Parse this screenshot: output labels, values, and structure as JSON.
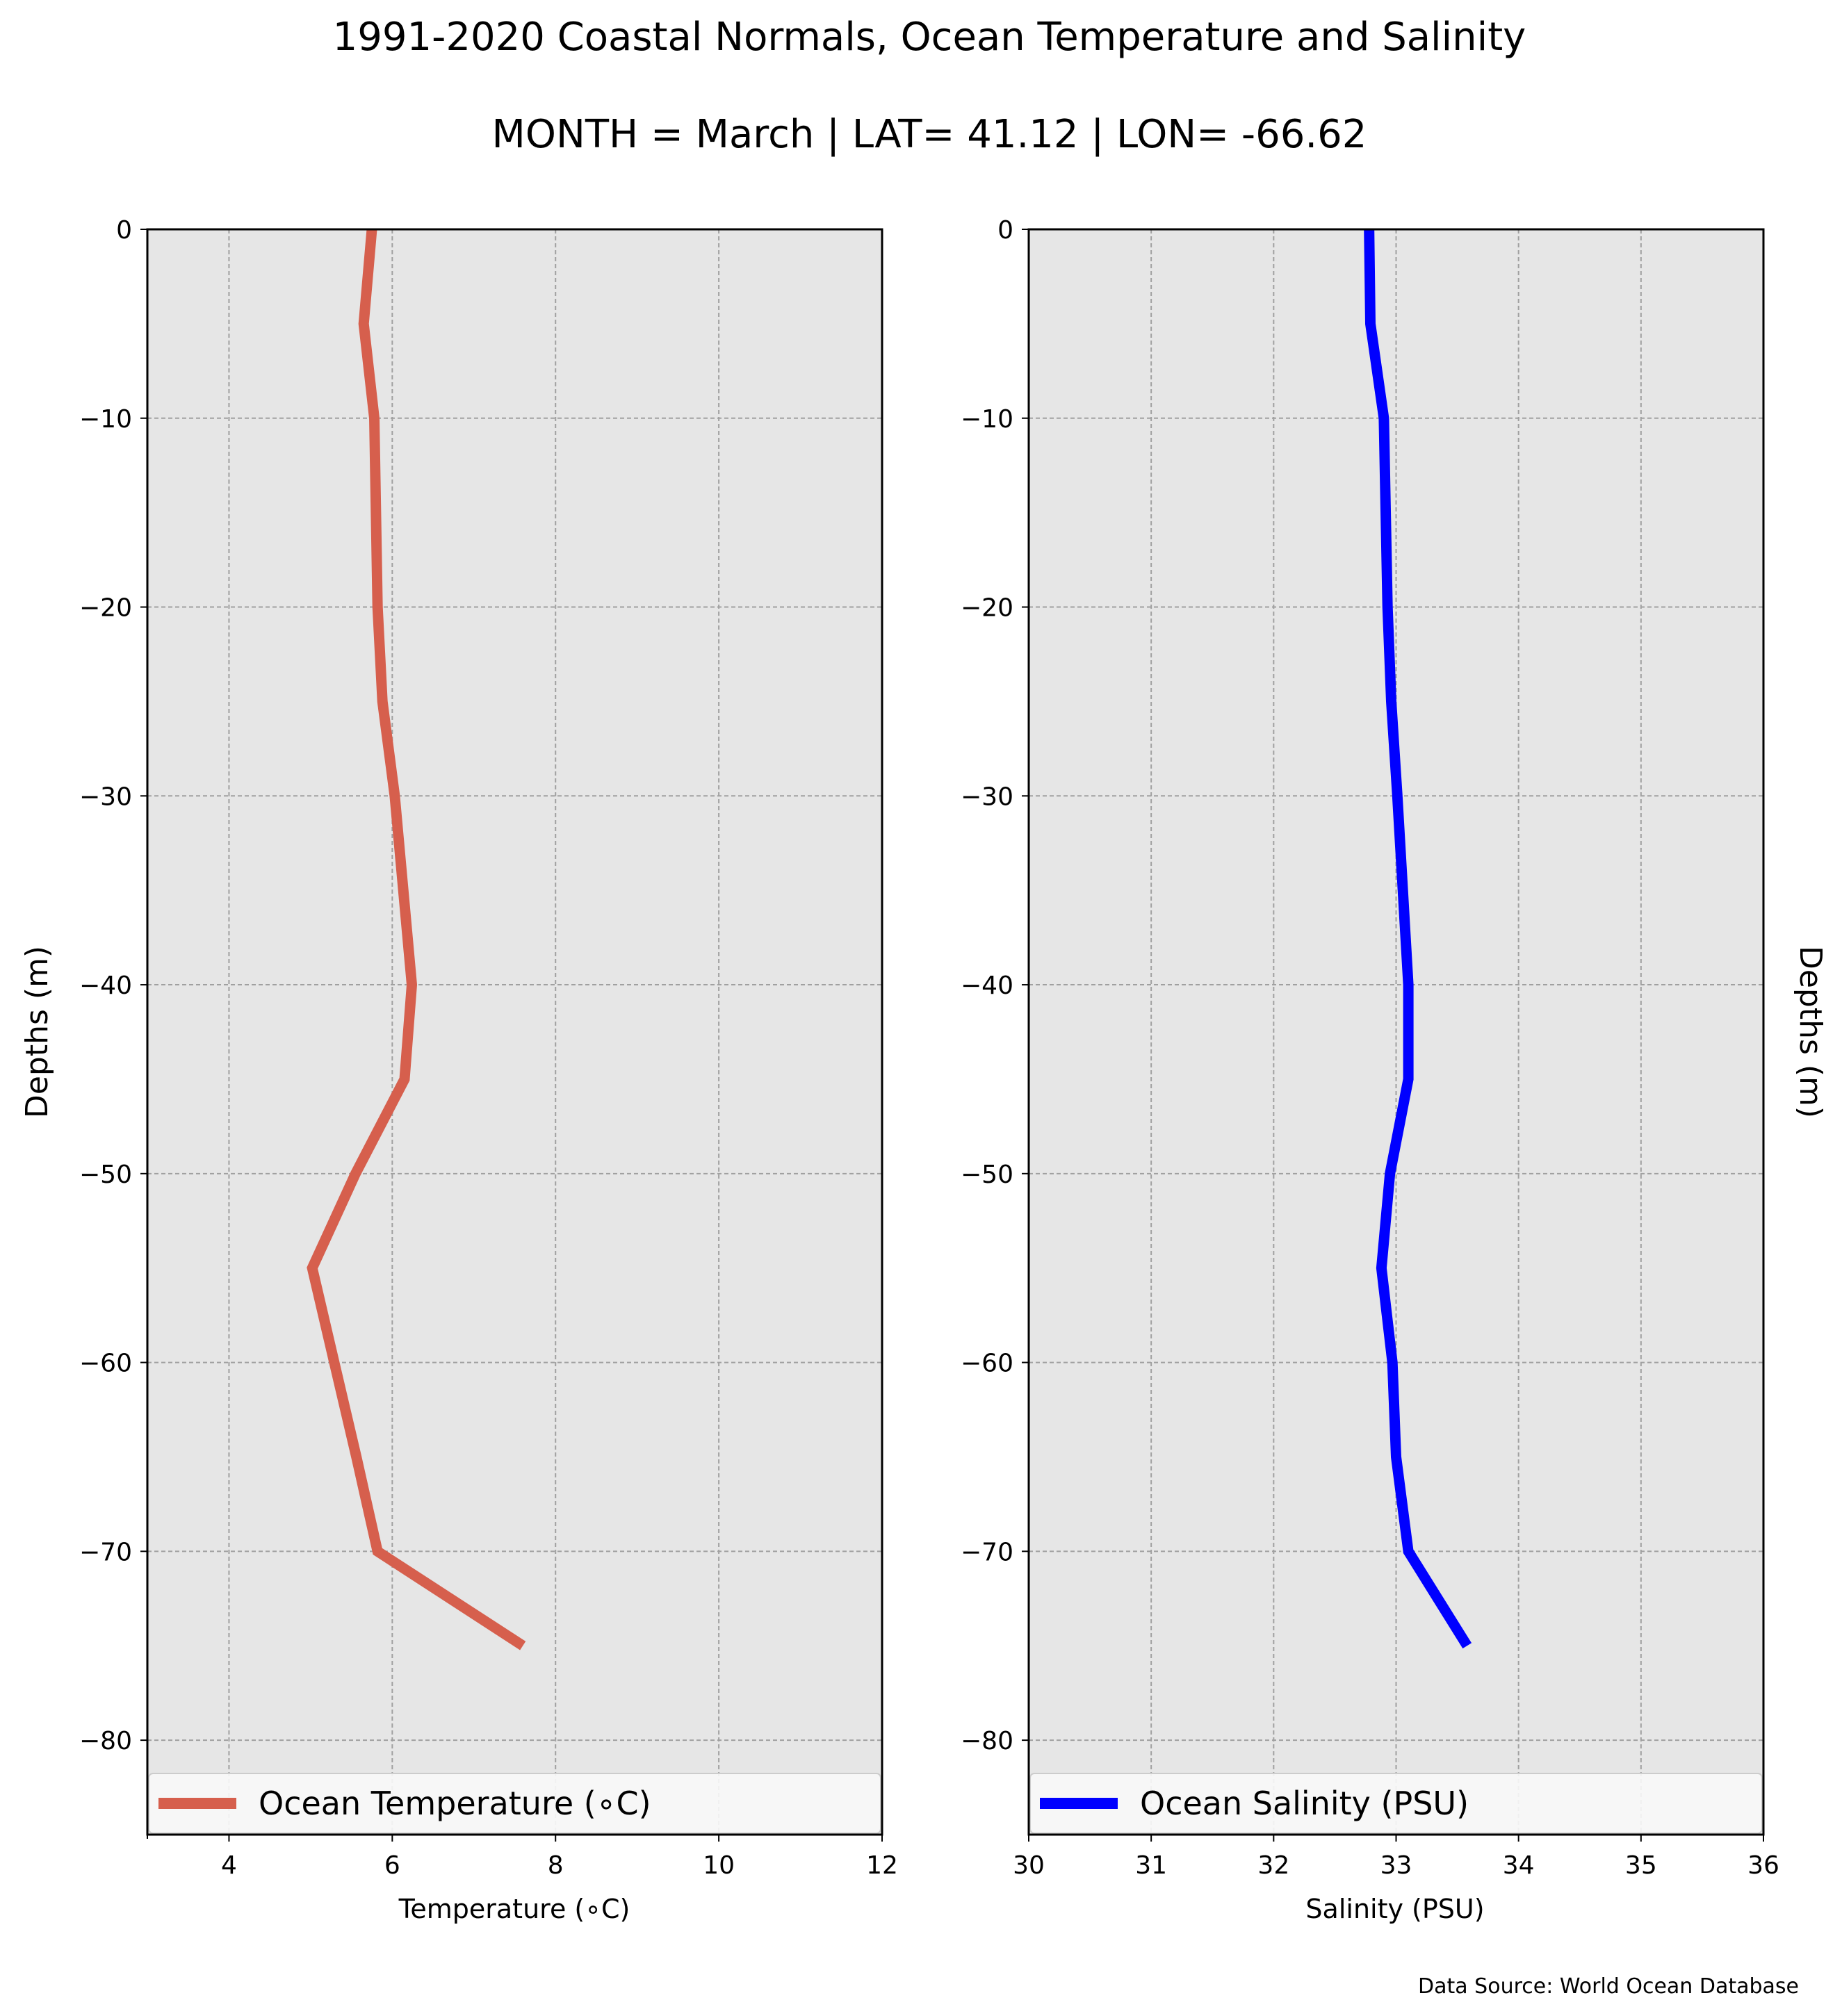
{
  "figure": {
    "title": "1991-2020 Coastal Normals, Ocean Temperature and Salinity",
    "subtitle": "MONTH = March | LAT= 41.12 | LON= -66.62",
    "source": "Data Source: World Ocean Database"
  },
  "chart_data": [
    {
      "type": "line",
      "orientation": "vertical-profile",
      "xlabel": "Temperature (∘C)",
      "ylabel": "Depths (m)",
      "xlim": [
        3,
        12
      ],
      "ylim": [
        -85,
        0
      ],
      "xticks": [
        4,
        6,
        8,
        10,
        12
      ],
      "xtick_labels": [
        "4",
        "6",
        "8",
        "10",
        "12"
      ],
      "yticks": [
        0,
        -10,
        -20,
        -30,
        -40,
        -50,
        -60,
        -70,
        -80
      ],
      "ytick_labels": [
        "0",
        "−10",
        "−20",
        "−30",
        "−40",
        "−50",
        "−60",
        "−70",
        "−80"
      ],
      "grid": true,
      "legend_position": "bottom",
      "background": "#e6e6e6",
      "series": [
        {
          "name": "Ocean Temperature (∘C)",
          "color": "#d65f4d",
          "x": [
            5.75,
            5.65,
            5.78,
            5.82,
            5.88,
            6.03,
            6.24,
            6.15,
            5.55,
            5.02,
            5.29,
            5.56,
            5.82,
            7.6
          ],
          "y": [
            0,
            -5,
            -10,
            -20,
            -25,
            -30,
            -40,
            -45,
            -50,
            -55,
            -60,
            -65,
            -70,
            -75
          ]
        }
      ]
    },
    {
      "type": "line",
      "orientation": "vertical-profile",
      "xlabel": "Salinity (PSU)",
      "ylabel": "Depths (m)",
      "xlim": [
        30,
        36
      ],
      "ylim": [
        -85,
        0
      ],
      "xticks": [
        30,
        31,
        32,
        33,
        34,
        35,
        36
      ],
      "xtick_labels": [
        "30",
        "31",
        "32",
        "33",
        "34",
        "35",
        "36"
      ],
      "yticks": [
        0,
        -10,
        -20,
        -30,
        -40,
        -50,
        -60,
        -70,
        -80
      ],
      "ytick_labels": [
        "0",
        "−10",
        "−20",
        "−30",
        "−40",
        "−50",
        "−60",
        "−70",
        "−80"
      ],
      "grid": true,
      "legend_position": "bottom",
      "background": "#e6e6e6",
      "series": [
        {
          "name": "Ocean Salinity (PSU)",
          "color": "#0000ff",
          "x": [
            32.78,
            32.79,
            32.9,
            32.93,
            32.96,
            33.01,
            33.1,
            33.1,
            32.95,
            32.88,
            32.97,
            33.0,
            33.1,
            33.58
          ],
          "y": [
            0,
            -5,
            -10,
            -20,
            -25,
            -30,
            -40,
            -45,
            -50,
            -55,
            -60,
            -65,
            -70,
            -75
          ]
        }
      ]
    }
  ]
}
